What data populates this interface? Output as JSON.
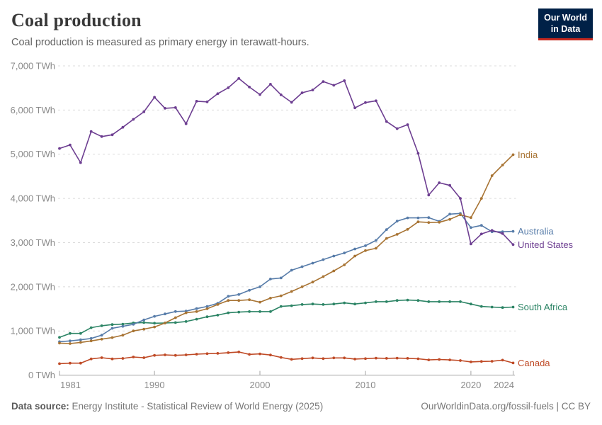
{
  "header": {
    "title": "Coal production",
    "subtitle": "Coal production is measured as primary energy in terawatt-hours.",
    "logo": {
      "line1": "Our World",
      "line2": "in Data",
      "bg_color": "#002147",
      "accent_color": "#c5291f"
    }
  },
  "footer": {
    "source_label": "Data source:",
    "source_text": " Energy Institute - Statistical Review of World Energy (2025)",
    "license_text": "OurWorldinData.org/fossil-fuels | CC BY"
  },
  "chart_data": {
    "type": "line",
    "title": "Coal production",
    "unit": "TWh",
    "xlabel": "",
    "ylabel": "",
    "xlim": [
      1981,
      2024
    ],
    "ylim": [
      0,
      7000
    ],
    "grid": true,
    "legend_position": "end-of-line-labels",
    "grid_color": "#dcdcdc",
    "axis_color": "#a3a3a3",
    "x": [
      1981,
      1982,
      1983,
      1984,
      1985,
      1986,
      1987,
      1988,
      1989,
      1990,
      1991,
      1992,
      1993,
      1994,
      1995,
      1996,
      1997,
      1998,
      1999,
      2000,
      2001,
      2002,
      2003,
      2004,
      2005,
      2006,
      2007,
      2008,
      2009,
      2010,
      2011,
      2012,
      2013,
      2014,
      2015,
      2016,
      2017,
      2018,
      2019,
      2020,
      2021,
      2022,
      2023,
      2024
    ],
    "x_ticks": [
      {
        "year": 1981,
        "label": "1981",
        "align": "start"
      },
      {
        "year": 1990,
        "label": "1990",
        "align": "middle"
      },
      {
        "year": 2000,
        "label": "2000",
        "align": "middle"
      },
      {
        "year": 2010,
        "label": "2010",
        "align": "middle"
      },
      {
        "year": 2020,
        "label": "2020",
        "align": "middle"
      },
      {
        "year": 2024,
        "label": "2024",
        "align": "end"
      }
    ],
    "y_ticks": [
      {
        "value": 0,
        "label": "0 TWh"
      },
      {
        "value": 1000,
        "label": "1,000 TWh"
      },
      {
        "value": 2000,
        "label": "2,000 TWh"
      },
      {
        "value": 3000,
        "label": "3,000 TWh"
      },
      {
        "value": 4000,
        "label": "4,000 TWh"
      },
      {
        "value": 5000,
        "label": "5,000 TWh"
      },
      {
        "value": 6000,
        "label": "6,000 TWh"
      },
      {
        "value": 7000,
        "label": "7,000 TWh"
      }
    ],
    "series": [
      {
        "name": "Canada",
        "color": "#bf4a26",
        "values": [
          260,
          271,
          271,
          367,
          395,
          367,
          379,
          411,
          395,
          448,
          459,
          448,
          459,
          475,
          486,
          492,
          508,
          524,
          470,
          481,
          455,
          401,
          358,
          374,
          390,
          374,
          390,
          390,
          364,
          374,
          385,
          380,
          385,
          380,
          370,
          345,
          355,
          345,
          330,
          300,
          310,
          315,
          340,
          275
        ]
      },
      {
        "name": "South Africa",
        "color": "#2c8465",
        "values": [
          854,
          945,
          945,
          1075,
          1117,
          1145,
          1155,
          1181,
          1190,
          1175,
          1180,
          1190,
          1213,
          1266,
          1321,
          1358,
          1411,
          1427,
          1438,
          1438,
          1438,
          1556,
          1572,
          1599,
          1610,
          1599,
          1610,
          1636,
          1610,
          1636,
          1663,
          1663,
          1690,
          1700,
          1690,
          1663,
          1663,
          1663,
          1663,
          1610,
          1556,
          1540,
          1530,
          1540
        ]
      },
      {
        "name": "Australia",
        "color": "#577ca9",
        "values": [
          757,
          775,
          800,
          830,
          905,
          1060,
          1105,
          1150,
          1250,
          1330,
          1385,
          1440,
          1450,
          1505,
          1555,
          1625,
          1785,
          1825,
          1920,
          2000,
          2175,
          2200,
          2375,
          2455,
          2535,
          2615,
          2695,
          2765,
          2855,
          2930,
          3050,
          3295,
          3485,
          3560,
          3560,
          3565,
          3480,
          3645,
          3660,
          3340,
          3390,
          3245,
          3245,
          3255
        ]
      },
      {
        "name": "India",
        "color": "#a87434",
        "values": [
          724,
          715,
          740,
          775,
          815,
          850,
          905,
          1000,
          1040,
          1090,
          1180,
          1300,
          1411,
          1438,
          1503,
          1599,
          1690,
          1690,
          1706,
          1652,
          1743,
          1796,
          1893,
          2000,
          2107,
          2230,
          2358,
          2497,
          2695,
          2818,
          2872,
          3095,
          3185,
          3300,
          3470,
          3455,
          3460,
          3525,
          3630,
          3565,
          4000,
          4515,
          4755,
          4990
        ]
      },
      {
        "name": "United States",
        "color": "#6d3e91",
        "values": [
          5130,
          5210,
          4810,
          5515,
          5400,
          5440,
          5610,
          5790,
          5960,
          6290,
          6040,
          6055,
          5690,
          6200,
          6185,
          6370,
          6505,
          6715,
          6520,
          6350,
          6585,
          6345,
          6175,
          6390,
          6455,
          6645,
          6560,
          6665,
          6050,
          6170,
          6210,
          5740,
          5580,
          5670,
          5020,
          4075,
          4355,
          4295,
          4000,
          2970,
          3195,
          3275,
          3205,
          2955
        ]
      }
    ]
  }
}
